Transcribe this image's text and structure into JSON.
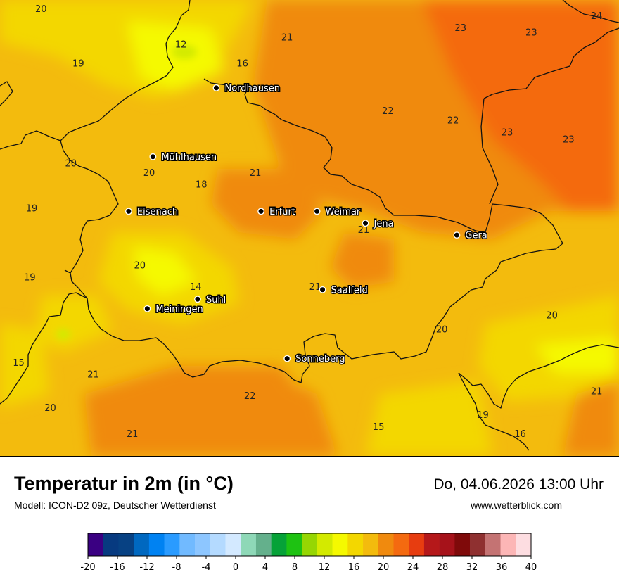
{
  "title": "Temperatur in 2m (in °C)",
  "subtitle": "Modell: ICON-D2 09z, Deutscher Wetterdienst",
  "datetime": "Do, 04.06.2026 13:00 Uhr",
  "website": "www.wetterblick.com",
  "cities": [
    {
      "name": "Nordhausen",
      "lon": 10.79,
      "lat": 51.5
    },
    {
      "name": "Mühlhausen",
      "lon": 10.45,
      "lat": 51.21
    },
    {
      "name": "Eisenach",
      "lon": 10.32,
      "lat": 50.98
    },
    {
      "name": "Erfurt",
      "lon": 11.03,
      "lat": 50.98
    },
    {
      "name": "Weimar",
      "lon": 11.33,
      "lat": 50.98
    },
    {
      "name": "Jena",
      "lon": 11.59,
      "lat": 50.93
    },
    {
      "name": "Gera",
      "lon": 12.08,
      "lat": 50.88
    },
    {
      "name": "Suhl",
      "lon": 10.69,
      "lat": 50.61
    },
    {
      "name": "Meiningen",
      "lon": 10.42,
      "lat": 50.57
    },
    {
      "name": "Saalfeld",
      "lon": 11.36,
      "lat": 50.65
    },
    {
      "name": "Sonneberg",
      "lon": 11.17,
      "lat": 50.36
    }
  ],
  "point_values": [
    {
      "value": "20",
      "lon": 9.85,
      "lat": 51.82
    },
    {
      "value": "12",
      "lon": 10.6,
      "lat": 51.67
    },
    {
      "value": "21",
      "lon": 11.17,
      "lat": 51.7
    },
    {
      "value": "23",
      "lon": 12.1,
      "lat": 51.74
    },
    {
      "value": "23",
      "lon": 12.48,
      "lat": 51.72
    },
    {
      "value": "24",
      "lon": 12.83,
      "lat": 51.79
    },
    {
      "value": "19",
      "lon": 10.05,
      "lat": 51.59
    },
    {
      "value": "16",
      "lon": 10.93,
      "lat": 51.59
    },
    {
      "value": "22",
      "lon": 11.71,
      "lat": 51.39
    },
    {
      "value": "22",
      "lon": 12.06,
      "lat": 51.35
    },
    {
      "value": "23",
      "lon": 12.35,
      "lat": 51.3
    },
    {
      "value": "23",
      "lon": 12.68,
      "lat": 51.27
    },
    {
      "value": "20",
      "lon": 10.01,
      "lat": 51.17
    },
    {
      "value": "20",
      "lon": 10.43,
      "lat": 51.13
    },
    {
      "value": "21",
      "lon": 11.0,
      "lat": 51.13
    },
    {
      "value": "18",
      "lon": 10.71,
      "lat": 51.08
    },
    {
      "value": "19",
      "lon": 9.8,
      "lat": 50.98
    },
    {
      "value": "21",
      "lon": 11.58,
      "lat": 50.89
    },
    {
      "value": "20",
      "lon": 10.38,
      "lat": 50.74
    },
    {
      "value": "19",
      "lon": 9.79,
      "lat": 50.69
    },
    {
      "value": "14",
      "lon": 10.68,
      "lat": 50.65
    },
    {
      "value": "21",
      "lon": 11.32,
      "lat": 50.65
    },
    {
      "value": "20",
      "lon": 12.59,
      "lat": 50.53
    },
    {
      "value": "20",
      "lon": 12.0,
      "lat": 50.47
    },
    {
      "value": "15",
      "lon": 9.73,
      "lat": 50.33
    },
    {
      "value": "21",
      "lon": 10.13,
      "lat": 50.28
    },
    {
      "value": "21",
      "lon": 12.83,
      "lat": 50.21
    },
    {
      "value": "22",
      "lon": 10.97,
      "lat": 50.19
    },
    {
      "value": "20",
      "lon": 9.9,
      "lat": 50.14
    },
    {
      "value": "15",
      "lon": 11.66,
      "lat": 50.06
    },
    {
      "value": "19",
      "lon": 12.22,
      "lat": 50.11
    },
    {
      "value": "21",
      "lon": 10.34,
      "lat": 50.03
    },
    {
      "value": "16",
      "lon": 12.42,
      "lat": 50.03
    }
  ],
  "legend": {
    "colors": [
      "#3a0082",
      "#073a80",
      "#074183",
      "#0068c0",
      "#0082f2",
      "#2a9bff",
      "#71baff",
      "#8dc6ff",
      "#b4daff",
      "#d3e9ff",
      "#8ed8b7",
      "#64b08c",
      "#06a238",
      "#1ec212",
      "#96d603",
      "#d3ea00",
      "#f5f900",
      "#f3d700",
      "#f3bb0d",
      "#f08a0e",
      "#f46a10",
      "#e73d10",
      "#b5181a",
      "#a6121a",
      "#7f0a0a",
      "#8f3030",
      "#c47373",
      "#fcb6b6",
      "#fddde1"
    ],
    "ticks": [
      "-20",
      "-16",
      "-12",
      "-8",
      "-4",
      "0",
      "4",
      "8",
      "12",
      "16",
      "20",
      "24",
      "28",
      "32",
      "36",
      "40"
    ]
  }
}
